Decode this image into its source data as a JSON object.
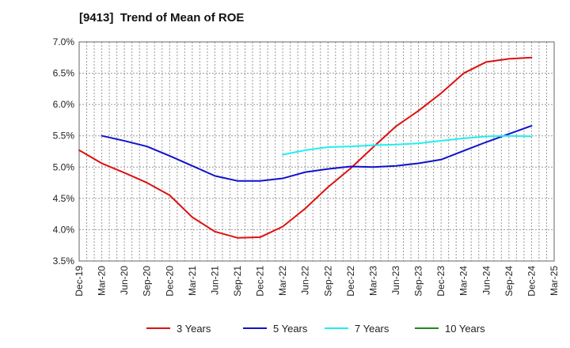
{
  "chart_data": {
    "type": "line",
    "title": "[9413]  Trend of Mean of ROE",
    "xlabel": "",
    "ylabel": "",
    "ylim": [
      3.5,
      7.0
    ],
    "y_ticks": [
      "3.5%",
      "4.0%",
      "4.5%",
      "5.0%",
      "5.5%",
      "6.0%",
      "6.5%",
      "7.0%"
    ],
    "y_tick_values": [
      3.5,
      4.0,
      4.5,
      5.0,
      5.5,
      6.0,
      6.5,
      7.0
    ],
    "categories": [
      "Dec-19",
      "Mar-20",
      "Jun-20",
      "Sep-20",
      "Dec-20",
      "Mar-21",
      "Jun-21",
      "Sep-21",
      "Dec-21",
      "Mar-22",
      "Jun-22",
      "Sep-22",
      "Dec-22",
      "Mar-23",
      "Jun-23",
      "Sep-23",
      "Dec-23",
      "Mar-24",
      "Jun-24",
      "Sep-24",
      "Dec-24",
      "Mar-25"
    ],
    "grid": true,
    "legend_position": "bottom",
    "series": [
      {
        "name": "3 Years",
        "color": "#dd1111",
        "values": [
          5.27,
          5.06,
          4.91,
          4.75,
          4.55,
          4.2,
          3.97,
          3.87,
          3.88,
          4.05,
          4.34,
          4.68,
          4.98,
          5.32,
          5.65,
          5.9,
          6.18,
          6.5,
          6.68,
          6.73,
          6.75,
          null
        ]
      },
      {
        "name": "5 Years",
        "color": "#1111cc",
        "values": [
          null,
          5.5,
          5.42,
          5.33,
          5.18,
          5.02,
          4.86,
          4.78,
          4.78,
          4.82,
          4.92,
          4.97,
          5.01,
          5.0,
          5.02,
          5.06,
          5.12,
          5.26,
          5.4,
          5.53,
          5.66,
          null
        ]
      },
      {
        "name": "7 Years",
        "color": "#22eeee",
        "values": [
          null,
          null,
          null,
          null,
          null,
          null,
          null,
          null,
          null,
          5.2,
          5.27,
          5.32,
          5.33,
          5.35,
          5.36,
          5.38,
          5.42,
          5.46,
          5.49,
          5.5,
          5.49,
          null
        ]
      },
      {
        "name": "10 Years",
        "color": "#228822",
        "values": [
          null,
          null,
          null,
          null,
          null,
          null,
          null,
          null,
          null,
          null,
          null,
          null,
          null,
          null,
          null,
          null,
          null,
          null,
          null,
          null,
          null,
          null
        ]
      }
    ]
  }
}
